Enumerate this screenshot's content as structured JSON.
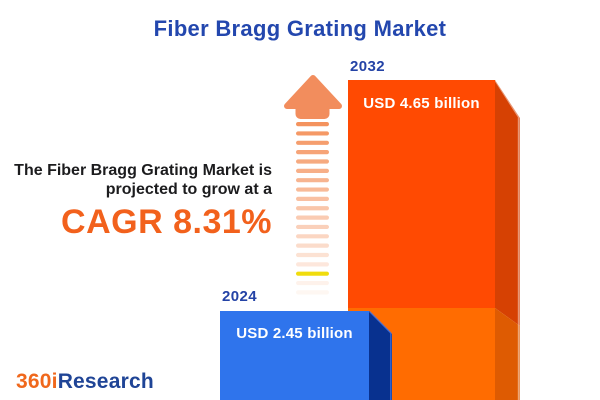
{
  "chart_data": {
    "type": "bar",
    "title": "Fiber Bragg Grating Market",
    "categories": [
      "2024",
      "2032"
    ],
    "values": [
      2.45,
      4.65
    ],
    "unit": "USD billion",
    "value_labels": [
      "USD 2.45 billion",
      "USD 4.65 billion"
    ],
    "cagr_percent": 8.31,
    "annotations": [
      "The Fiber Bragg Grating Market is projected to grow at a CAGR 8.31%"
    ],
    "grid": false,
    "legend_position": "none",
    "style": "3d-bars-with-growth-arrow"
  },
  "headline": {
    "line1": "The Fiber Bragg Grating Market is",
    "line2": "projected to grow at a",
    "cagr": "CAGR 8.31%"
  },
  "logo": {
    "part1": "360i",
    "part2": "Research"
  },
  "arrow": {
    "body_color": "#F28D5D",
    "dash_color": "#F4935E",
    "accent_dash_color": "#EFDA00"
  },
  "colors": {
    "title-color": "#2347AE",
    "headline-text-color": "#1C1C1E",
    "cagr-color": "#F2611C",
    "year-label-color": "#2443A6",
    "value-label-color": "#FFFFFF",
    "bar2024-front": "#2F74EC",
    "bar2024-side": "#08318F",
    "bar2032-front-upper": "#FF4A02",
    "bar2032-front-lower": "#FF6C01",
    "bar2032-side-upper": "#D64103",
    "bar2032-side-lower": "#DE5B02",
    "logo-orange": "#F0681C",
    "logo-blue": "#1F4496",
    "arrow-color": "#F28D5D"
  }
}
